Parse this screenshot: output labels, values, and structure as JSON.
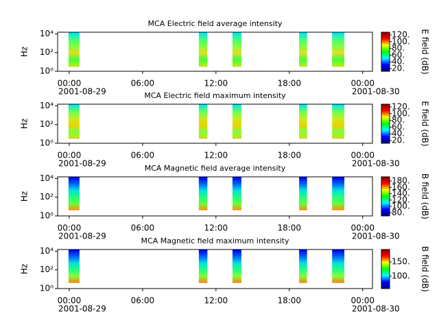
{
  "chart_data": [
    {
      "type": "spectrogram",
      "title": "MCA  Electric field average intensity",
      "ylabel": "Hz",
      "log_y": true,
      "ylim": [
        1,
        15000
      ],
      "yticks": [
        {
          "value": 1,
          "label": "10⁰"
        },
        {
          "value": 100,
          "label": "10²"
        },
        {
          "value": 10000,
          "label": "10⁴"
        }
      ],
      "xlim": [
        -0.95,
        24.8
      ],
      "xticks": [
        {
          "value": 0,
          "label": "00:00"
        },
        {
          "value": 6,
          "label": "06:00"
        },
        {
          "value": 12,
          "label": "12:00"
        },
        {
          "value": 18,
          "label": "18:00"
        },
        {
          "value": 24,
          "label": "00:00"
        }
      ],
      "dates": [
        {
          "value": 0,
          "label": "2001-08-29"
        },
        {
          "value": 24,
          "label": "2001-08-30"
        }
      ],
      "colormap": [
        "#00008f",
        "#0000ff",
        "#00ffff",
        "#00ff00",
        "#ffff00",
        "#ff0000",
        "#800000"
      ],
      "block_colors": [
        "#00e0ff",
        "#40ff80",
        "#80ff40",
        "#e0e020",
        "#40ff40",
        "#c0f000"
      ],
      "colorbar": {
        "label": "E field (dB)",
        "clim": [
          12,
          128
        ],
        "ticks": [
          {
            "value": 20,
            "label": "20."
          },
          {
            "value": 40,
            "label": "40."
          },
          {
            "value": 60,
            "label": "60."
          },
          {
            "value": 80,
            "label": "80."
          },
          {
            "value": 100,
            "label": "100."
          },
          {
            "value": 120,
            "label": "120."
          }
        ]
      },
      "blocks": [
        {
          "t": [
            -0.06,
            0.84
          ],
          "f": [
            3,
            14000
          ]
        },
        {
          "t": [
            10.6,
            11.3
          ],
          "f": [
            3,
            14000
          ]
        },
        {
          "t": [
            13.35,
            14.08
          ],
          "f": [
            3,
            14000
          ]
        },
        {
          "t": [
            18.8,
            19.45
          ],
          "f": [
            3,
            14000
          ]
        },
        {
          "t": [
            21.5,
            22.5
          ],
          "f": [
            3,
            14000
          ]
        }
      ]
    },
    {
      "type": "spectrogram",
      "title": "MCA  Electric field maximum intensity",
      "ylabel": "Hz",
      "log_y": true,
      "ylim": [
        1,
        15000
      ],
      "yticks": [
        {
          "value": 1,
          "label": "10⁰"
        },
        {
          "value": 100,
          "label": "10²"
        },
        {
          "value": 10000,
          "label": "10⁴"
        }
      ],
      "xlim": [
        -0.95,
        24.8
      ],
      "xticks": [
        {
          "value": 0,
          "label": "00:00"
        },
        {
          "value": 6,
          "label": "06:00"
        },
        {
          "value": 12,
          "label": "12:00"
        },
        {
          "value": 18,
          "label": "18:00"
        },
        {
          "value": 24,
          "label": "00:00"
        }
      ],
      "dates": [
        {
          "value": 0,
          "label": "2001-08-29"
        },
        {
          "value": 24,
          "label": "2001-08-30"
        }
      ],
      "colormap": [
        "#00008f",
        "#0000ff",
        "#00ffff",
        "#00ff00",
        "#ffff00",
        "#ff0000",
        "#800000"
      ],
      "block_colors": [
        "#00e0ff",
        "#60ff60",
        "#c0f020",
        "#f0d000",
        "#80ff40",
        "#d0e000"
      ],
      "colorbar": {
        "label": "E field (dB)",
        "clim": [
          12,
          128
        ],
        "ticks": [
          {
            "value": 20,
            "label": "20."
          },
          {
            "value": 40,
            "label": "40."
          },
          {
            "value": 60,
            "label": "60."
          },
          {
            "value": 80,
            "label": "80."
          },
          {
            "value": 100,
            "label": "100."
          },
          {
            "value": 120,
            "label": "120."
          }
        ]
      },
      "blocks": [
        {
          "t": [
            -0.06,
            0.84
          ],
          "f": [
            3,
            14000
          ]
        },
        {
          "t": [
            10.6,
            11.3
          ],
          "f": [
            3,
            14000
          ]
        },
        {
          "t": [
            13.35,
            14.08
          ],
          "f": [
            3,
            14000
          ]
        },
        {
          "t": [
            18.8,
            19.45
          ],
          "f": [
            3,
            14000
          ]
        },
        {
          "t": [
            21.5,
            22.5
          ],
          "f": [
            3,
            14000
          ]
        }
      ]
    },
    {
      "type": "spectrogram",
      "title": "MCA  Magnetic field average intensity",
      "ylabel": "Hz",
      "log_y": true,
      "ylim": [
        1,
        15000
      ],
      "yticks": [
        {
          "value": 1,
          "label": "10⁰"
        },
        {
          "value": 100,
          "label": "10²"
        },
        {
          "value": 10000,
          "label": "10⁴"
        }
      ],
      "xlim": [
        -0.95,
        24.8
      ],
      "xticks": [
        {
          "value": 0,
          "label": "00:00"
        },
        {
          "value": 6,
          "label": "06:00"
        },
        {
          "value": 12,
          "label": "12:00"
        },
        {
          "value": 18,
          "label": "18:00"
        },
        {
          "value": 24,
          "label": "00:00"
        }
      ],
      "dates": [
        {
          "value": 0,
          "label": "2001-08-29"
        },
        {
          "value": 24,
          "label": "2001-08-30"
        }
      ],
      "colormap": [
        "#00008f",
        "#0000ff",
        "#00ffff",
        "#00ff00",
        "#ffff00",
        "#ff0000",
        "#800000"
      ],
      "block_colors": [
        "#0000e0",
        "#0060ff",
        "#00e0e0",
        "#20ff80",
        "#60ff40",
        "#ff9000"
      ],
      "colorbar": {
        "label": "B field (dB)",
        "clim": [
          70,
          193
        ],
        "ticks": [
          {
            "value": 80,
            "label": "80."
          },
          {
            "value": 100,
            "label": "100."
          },
          {
            "value": 120,
            "label": "120."
          },
          {
            "value": 140,
            "label": "140."
          },
          {
            "value": 160,
            "label": "160."
          },
          {
            "value": 180,
            "label": "180."
          }
        ]
      },
      "blocks": [
        {
          "t": [
            -0.06,
            0.84
          ],
          "f": [
            4,
            14000
          ]
        },
        {
          "t": [
            10.6,
            11.3
          ],
          "f": [
            4,
            14000
          ]
        },
        {
          "t": [
            13.35,
            14.08
          ],
          "f": [
            4,
            14000
          ]
        },
        {
          "t": [
            18.8,
            19.45
          ],
          "f": [
            4,
            14000
          ]
        },
        {
          "t": [
            21.5,
            22.5
          ],
          "f": [
            4,
            14000
          ]
        }
      ]
    },
    {
      "type": "spectrogram",
      "title": "MCA  Magnetic field maximum intensity",
      "ylabel": "Hz",
      "log_y": true,
      "ylim": [
        1,
        15000
      ],
      "yticks": [
        {
          "value": 1,
          "label": "10⁰"
        },
        {
          "value": 100,
          "label": "10²"
        },
        {
          "value": 10000,
          "label": "10⁴"
        }
      ],
      "xlim": [
        -0.95,
        24.8
      ],
      "xticks": [
        {
          "value": 0,
          "label": "00:00"
        },
        {
          "value": 6,
          "label": "06:00"
        },
        {
          "value": 12,
          "label": "12:00"
        },
        {
          "value": 18,
          "label": "18:00"
        },
        {
          "value": 24,
          "label": "00:00"
        }
      ],
      "dates": [
        {
          "value": 0,
          "label": "2001-08-29"
        },
        {
          "value": 24,
          "label": "2001-08-30"
        }
      ],
      "colormap": [
        "#00008f",
        "#0000ff",
        "#00ffff",
        "#00ff00",
        "#ffff00",
        "#ff0000",
        "#800000"
      ],
      "block_colors": [
        "#0000e0",
        "#0060ff",
        "#00e0e0",
        "#20ff80",
        "#80ff40",
        "#ff8000"
      ],
      "colorbar": {
        "label": "B field (dB)",
        "clim": [
          57,
          193
        ],
        "ticks": [
          {
            "value": 100,
            "label": "100."
          },
          {
            "value": 150,
            "label": "150."
          }
        ]
      },
      "blocks": [
        {
          "t": [
            -0.06,
            0.84
          ],
          "f": [
            4,
            14000
          ]
        },
        {
          "t": [
            10.6,
            11.3
          ],
          "f": [
            4,
            14000
          ]
        },
        {
          "t": [
            13.35,
            14.08
          ],
          "f": [
            4,
            14000
          ]
        },
        {
          "t": [
            18.8,
            19.45
          ],
          "f": [
            4,
            14000
          ]
        },
        {
          "t": [
            21.5,
            22.5
          ],
          "f": [
            4,
            14000
          ]
        }
      ]
    }
  ]
}
